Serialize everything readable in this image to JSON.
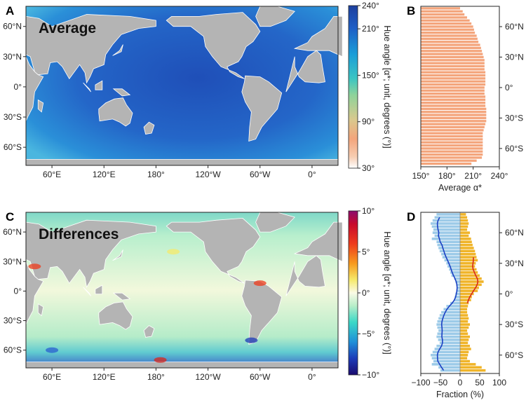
{
  "panels": {
    "A": {
      "letter": "A",
      "label": "Average"
    },
    "B": {
      "letter": "B"
    },
    "C": {
      "letter": "C",
      "label": "Differences"
    },
    "D": {
      "letter": "D"
    }
  },
  "map_axes": {
    "x_ticks": [
      "60°E",
      "120°E",
      "180°",
      "120°W",
      "60°W",
      "0°"
    ],
    "y_ticks": [
      "60°N",
      "30°N",
      "0°",
      "30°S",
      "60°S"
    ]
  },
  "colorbar_top": {
    "label": "Hue angle [α*; unit, degrees (°)]",
    "ticks": [
      "240°",
      "210°",
      "150°",
      "90°",
      "30°"
    ],
    "range": [
      30,
      240
    ]
  },
  "colorbar_bottom": {
    "label": "Hue angle [α*; unit, degrees (°)]",
    "ticks": [
      "10°",
      "5°",
      "0°",
      "−5°",
      "−10°"
    ],
    "range": [
      -10,
      10
    ]
  },
  "chart_data": [
    {
      "panel": "B",
      "type": "bar",
      "orientation": "horizontal",
      "xlabel": "Average α*",
      "x_ticks": [
        "150°",
        "180°",
        "210°",
        "240°"
      ],
      "xlim": [
        150,
        240
      ],
      "y_ticks": [
        "60°N",
        "30°N",
        "0°",
        "30°S",
        "60°S"
      ],
      "ylim_lat": [
        -78,
        80
      ],
      "bar_color": "#f4a57c",
      "latitudes": [
        78,
        75,
        72,
        69,
        66,
        63,
        60,
        57,
        54,
        51,
        48,
        45,
        42,
        39,
        36,
        33,
        30,
        27,
        24,
        21,
        18,
        15,
        12,
        9,
        6,
        3,
        0,
        -3,
        -6,
        -9,
        -12,
        -15,
        -18,
        -21,
        -24,
        -27,
        -30,
        -33,
        -36,
        -39,
        -42,
        -45,
        -48,
        -51,
        -54,
        -57,
        -60,
        -63,
        -66,
        -69,
        -72,
        -75
      ],
      "values": [
        195,
        198,
        200,
        203,
        206,
        208,
        210,
        211,
        212,
        214,
        215,
        216,
        218,
        219,
        220,
        221,
        222,
        223,
        223,
        223,
        223,
        224,
        224,
        224,
        224,
        224,
        223,
        223,
        223,
        224,
        224,
        224,
        224,
        225,
        225,
        225,
        225,
        225,
        224,
        223,
        222,
        221,
        221,
        221,
        221,
        221,
        221,
        221,
        221,
        220,
        214,
        208
      ]
    },
    {
      "panel": "D",
      "type": "bar",
      "orientation": "horizontal",
      "xlabel": "Fraction (%)",
      "x_ticks": [
        "−100",
        "−50",
        "0",
        "50",
        "100"
      ],
      "xlim": [
        -100,
        100
      ],
      "y_ticks": [
        "60°N",
        "30°N",
        "0°",
        "30°S",
        "60°S"
      ],
      "ylim_lat": [
        -78,
        80
      ],
      "series": [
        {
          "color": "#9ccae8",
          "line_color": "#1a3fc4",
          "values": [
            -60,
            -65,
            -70,
            -75,
            -72,
            -68,
            -70,
            -65,
            -72,
            -60,
            -58,
            -55,
            -52,
            -48,
            -45,
            -40,
            -35,
            -32,
            -28,
            -25,
            -22,
            -15,
            -12,
            -10,
            -8,
            -10,
            -12,
            -14,
            -16,
            -25,
            -35,
            -42,
            -48,
            -52,
            -55,
            -58,
            -60,
            -58,
            -55,
            -58,
            -60,
            -56,
            -52,
            -60,
            -65,
            -70,
            -75,
            -72,
            -68,
            -72,
            -55,
            -50
          ]
        },
        {
          "color": "#f0b428",
          "line_color": "#d9261c",
          "values": [
            15,
            18,
            20,
            22,
            20,
            18,
            25,
            22,
            28,
            30,
            32,
            35,
            38,
            40,
            42,
            45,
            40,
            38,
            42,
            45,
            50,
            55,
            60,
            55,
            48,
            45,
            35,
            30,
            28,
            22,
            20,
            18,
            18,
            20,
            22,
            20,
            25,
            22,
            18,
            20,
            25,
            22,
            20,
            25,
            28,
            22,
            20,
            18,
            25,
            40,
            55,
            65
          ]
        }
      ]
    }
  ]
}
